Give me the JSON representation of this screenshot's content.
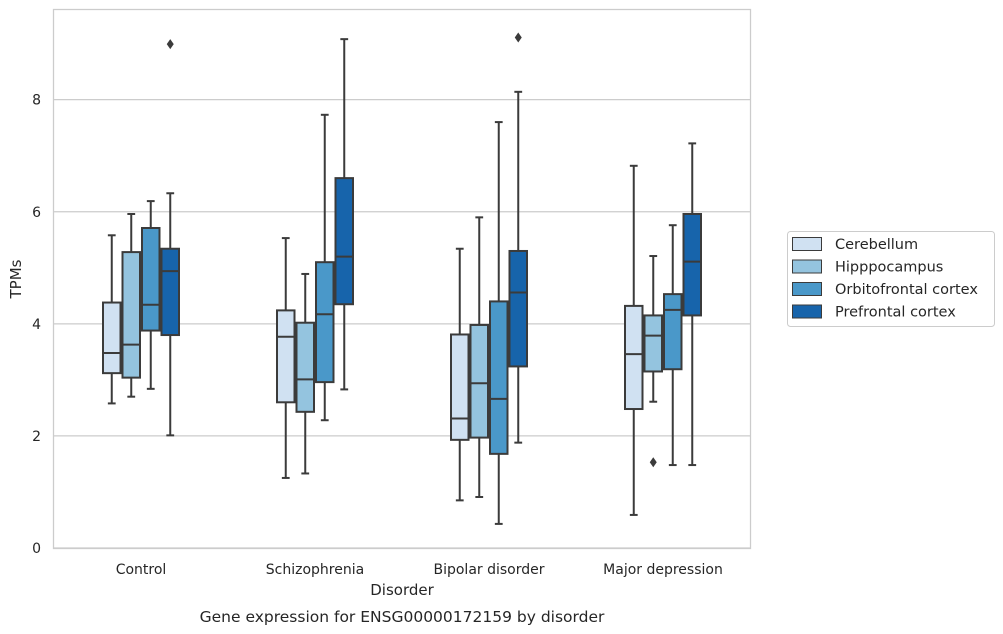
{
  "chart_data": {
    "type": "box",
    "title": "",
    "caption": "Gene expression for ENSG00000172159 by disorder",
    "xlabel": "Disorder",
    "ylabel": "TPMs",
    "ylim": [
      0,
      9.6
    ],
    "yticks": [
      0,
      2,
      4,
      6,
      8
    ],
    "grid": true,
    "legend_position": "right",
    "categories": [
      "Control",
      "Schizophrenia",
      "Bipolar disorder",
      "Major depression"
    ],
    "series": [
      {
        "name": "Cerebellum",
        "color": "#d0e1f2",
        "boxes": [
          {
            "whislo": 2.58,
            "q1": 3.12,
            "med": 3.48,
            "q3": 4.38,
            "whishi": 5.58,
            "fliers": []
          },
          {
            "whislo": 1.25,
            "q1": 2.6,
            "med": 3.77,
            "q3": 4.24,
            "whishi": 5.53,
            "fliers": []
          },
          {
            "whislo": 0.85,
            "q1": 1.93,
            "med": 2.31,
            "q3": 3.81,
            "whishi": 5.34,
            "fliers": []
          },
          {
            "whislo": 0.59,
            "q1": 2.48,
            "med": 3.46,
            "q3": 4.32,
            "whishi": 6.82,
            "fliers": []
          }
        ]
      },
      {
        "name": "Hipppocampus",
        "color": "#94c4df",
        "boxes": [
          {
            "whislo": 2.7,
            "q1": 3.04,
            "med": 3.63,
            "q3": 5.28,
            "whishi": 5.96,
            "fliers": []
          },
          {
            "whislo": 1.33,
            "q1": 2.43,
            "med": 3.01,
            "q3": 4.02,
            "whishi": 4.89,
            "fliers": []
          },
          {
            "whislo": 0.91,
            "q1": 1.97,
            "med": 2.94,
            "q3": 3.98,
            "whishi": 5.9,
            "fliers": []
          },
          {
            "whislo": 2.61,
            "q1": 3.15,
            "med": 3.79,
            "q3": 4.15,
            "whishi": 5.21,
            "fliers": [
              1.53
            ]
          }
        ]
      },
      {
        "name": "Orbitofrontal cortex",
        "color": "#4a98c9",
        "boxes": [
          {
            "whislo": 2.84,
            "q1": 3.88,
            "med": 4.34,
            "q3": 5.71,
            "whishi": 6.19,
            "fliers": []
          },
          {
            "whislo": 2.28,
            "q1": 2.96,
            "med": 4.17,
            "q3": 5.1,
            "whishi": 7.73,
            "fliers": []
          },
          {
            "whislo": 0.43,
            "q1": 1.68,
            "med": 2.66,
            "q3": 4.4,
            "whishi": 7.6,
            "fliers": []
          },
          {
            "whislo": 1.48,
            "q1": 3.19,
            "med": 4.25,
            "q3": 4.53,
            "whishi": 5.76,
            "fliers": []
          }
        ]
      },
      {
        "name": "Prefrontal cortex",
        "color": "#1764ab",
        "boxes": [
          {
            "whislo": 2.01,
            "q1": 3.8,
            "med": 4.94,
            "q3": 5.34,
            "whishi": 6.33,
            "fliers": [
              8.99
            ]
          },
          {
            "whislo": 2.83,
            "q1": 4.35,
            "med": 5.2,
            "q3": 6.6,
            "whishi": 9.08,
            "fliers": []
          },
          {
            "whislo": 1.88,
            "q1": 3.24,
            "med": 4.56,
            "q3": 5.3,
            "whishi": 8.14,
            "fliers": [
              9.11
            ]
          },
          {
            "whislo": 1.48,
            "q1": 4.15,
            "med": 5.11,
            "q3": 5.96,
            "whishi": 7.22,
            "fliers": []
          }
        ]
      }
    ]
  }
}
